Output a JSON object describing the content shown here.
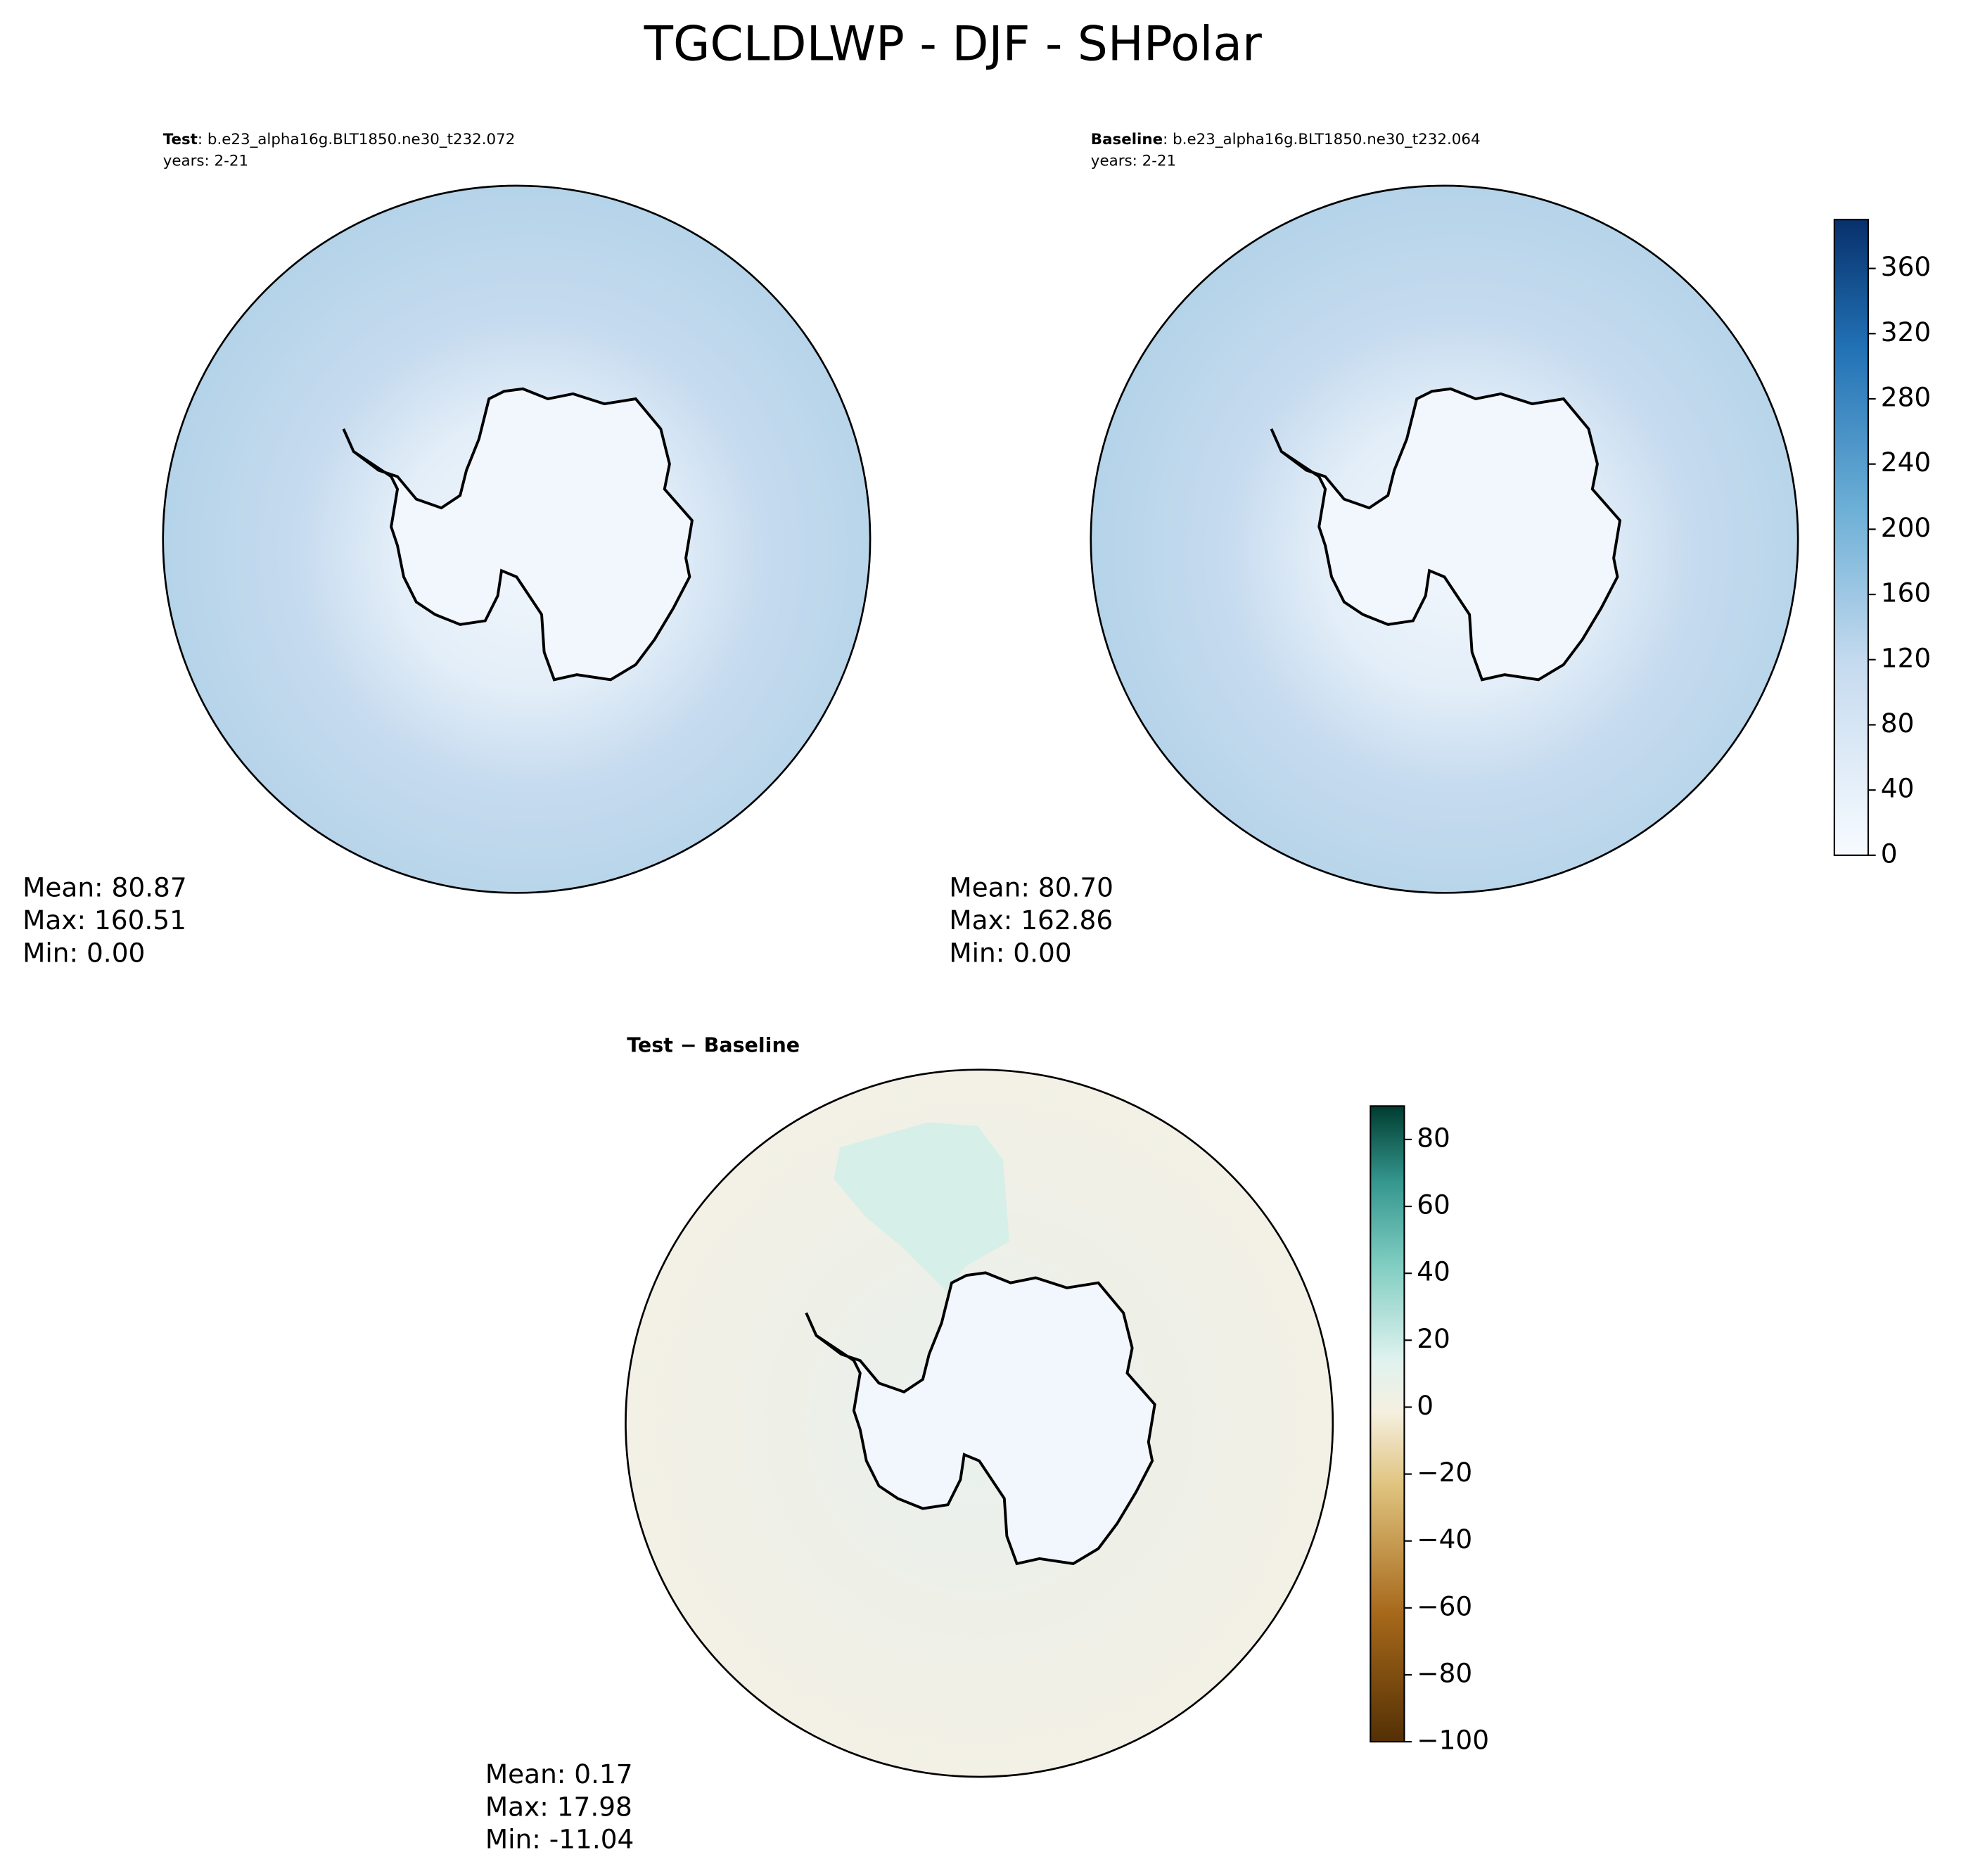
{
  "title": "TGCLDLWP - DJF - SHPolar",
  "panels": [
    {
      "label": "Test",
      "case": ": b.e23_alpha16g.BLT1850.ne30_t232.072",
      "years": "years: 2-21",
      "stats": [
        "Mean: 80.87",
        "Max: 160.51",
        "Min:  0.00"
      ]
    },
    {
      "label": "Baseline",
      "case": ": b.e23_alpha16g.BLT1850.ne30_t232.064",
      "years": "years: 2-21",
      "stats": [
        "Mean: 80.70",
        "Max: 162.86",
        "Min:  0.00"
      ]
    },
    {
      "label": "Test − Baseline",
      "stats": [
        "Mean:  0.17",
        "Max: 17.98",
        "Min: -11.04"
      ]
    }
  ],
  "colorbars": [
    {
      "lim": [
        0,
        390
      ],
      "ticks": [
        0,
        40,
        80,
        120,
        160,
        200,
        240,
        280,
        320,
        360
      ]
    },
    {
      "lim": [
        -100,
        90
      ],
      "ticks": [
        {
          "value": -100,
          "label": "−100"
        },
        {
          "value": -80,
          "label": "−80"
        },
        {
          "value": -60,
          "label": "−60"
        },
        {
          "value": -40,
          "label": "−40"
        },
        {
          "value": -20,
          "label": "−20"
        },
        0,
        20,
        40,
        60,
        80
      ]
    }
  ]
}
